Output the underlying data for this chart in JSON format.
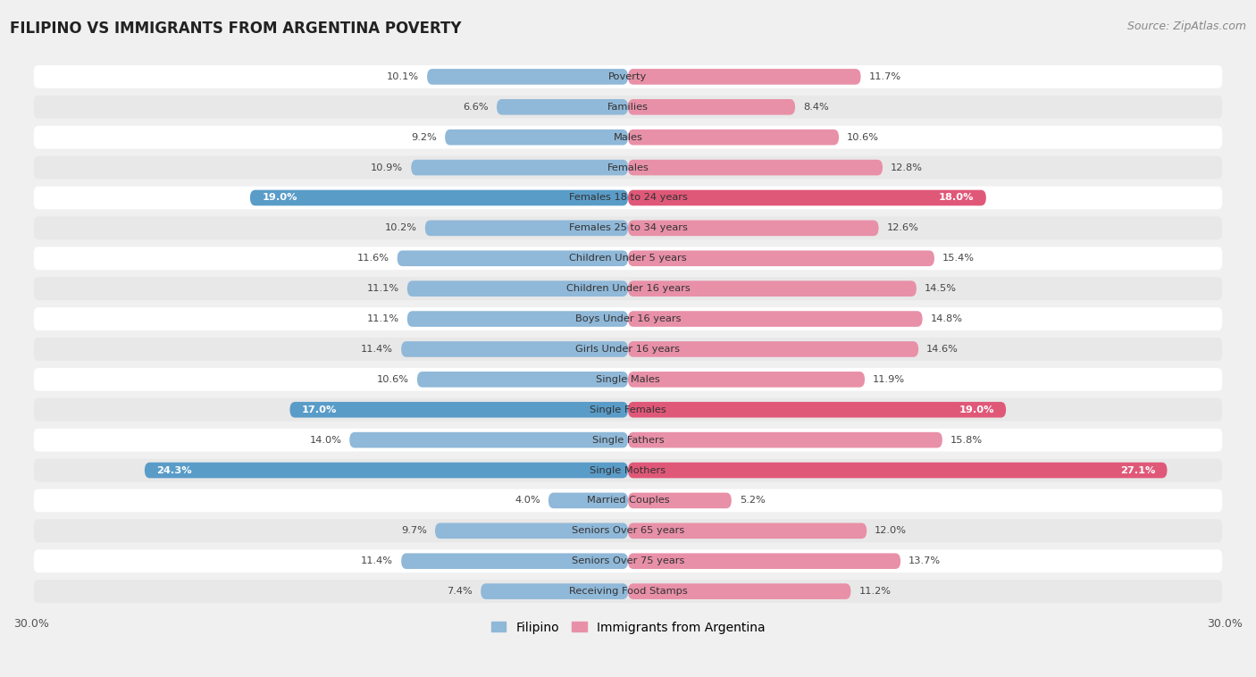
{
  "title": "FILIPINO VS IMMIGRANTS FROM ARGENTINA POVERTY",
  "source": "Source: ZipAtlas.com",
  "categories": [
    "Poverty",
    "Families",
    "Males",
    "Females",
    "Females 18 to 24 years",
    "Females 25 to 34 years",
    "Children Under 5 years",
    "Children Under 16 years",
    "Boys Under 16 years",
    "Girls Under 16 years",
    "Single Males",
    "Single Females",
    "Single Fathers",
    "Single Mothers",
    "Married Couples",
    "Seniors Over 65 years",
    "Seniors Over 75 years",
    "Receiving Food Stamps"
  ],
  "filipino": [
    10.1,
    6.6,
    9.2,
    10.9,
    19.0,
    10.2,
    11.6,
    11.1,
    11.1,
    11.4,
    10.6,
    17.0,
    14.0,
    24.3,
    4.0,
    9.7,
    11.4,
    7.4
  ],
  "argentina": [
    11.7,
    8.4,
    10.6,
    12.8,
    18.0,
    12.6,
    15.4,
    14.5,
    14.8,
    14.6,
    11.9,
    19.0,
    15.8,
    27.1,
    5.2,
    12.0,
    13.7,
    11.2
  ],
  "filipino_color": "#90b8d8",
  "argentina_color": "#e890a8",
  "filipino_highlight_color": "#5a9cc8",
  "argentina_highlight_color": "#e05878",
  "highlight_rows": [
    4,
    11,
    13
  ],
  "axis_max": 30.0,
  "background_color": "#f0f0f0",
  "row_bg_white": "#ffffff",
  "row_bg_gray": "#e8e8e8",
  "legend_filipino": "Filipino",
  "legend_argentina": "Immigrants from Argentina"
}
